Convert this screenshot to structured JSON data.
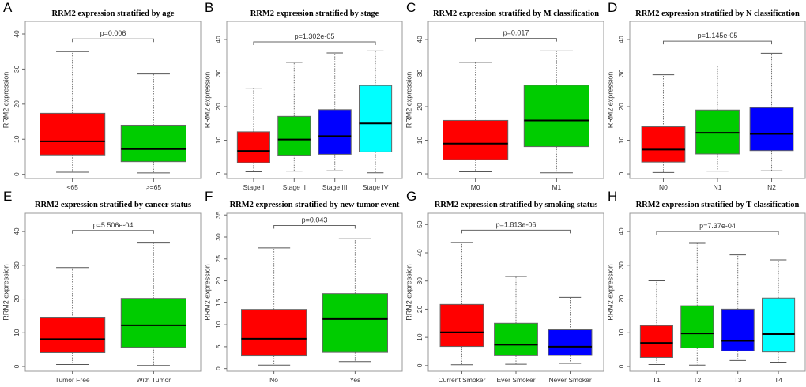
{
  "chart_data": [
    {
      "type": "boxplot",
      "letter": "A",
      "title": "RRM2 expression stratified by age",
      "ylabel": "RRM2 expression",
      "ylim": [
        -1.2,
        43.6
      ],
      "yticks": [
        0,
        10,
        20,
        30,
        40
      ],
      "p": "p=0.006",
      "bracket": 38.6,
      "categories": [
        "<65",
        ">=65"
      ],
      "colors": [
        "#ff0000",
        "#00cc00"
      ],
      "boxes": [
        {
          "min": 0.6,
          "q1": 5.5,
          "median": 9.4,
          "q3": 17.4,
          "max": 35
        },
        {
          "min": 0.4,
          "q1": 3.6,
          "median": 7.2,
          "q3": 14,
          "max": 28.6
        }
      ]
    },
    {
      "type": "boxplot",
      "letter": "B",
      "title": "RRM2 expression stratified by stage",
      "ylabel": "RRM2 expression",
      "ylim": [
        -1.4,
        45.4
      ],
      "yticks": [
        0,
        10,
        20,
        30,
        40
      ],
      "p": "p=1.302e-05",
      "bracket": 39.3,
      "categories": [
        "Stage I",
        "Stage II",
        "Stage III",
        "Stage IV"
      ],
      "colors": [
        "#ff0000",
        "#00cc00",
        "#0000ff",
        "#00ffff"
      ],
      "boxes": [
        {
          "min": 0.6,
          "q1": 3.3,
          "median": 6.8,
          "q3": 12.5,
          "max": 25.5
        },
        {
          "min": 0.8,
          "q1": 5.5,
          "median": 10.2,
          "q3": 17.1,
          "max": 33.2
        },
        {
          "min": 0.9,
          "q1": 5.8,
          "median": 11.2,
          "q3": 19.1,
          "max": 36
        },
        {
          "min": 0.3,
          "q1": 6.5,
          "median": 15,
          "q3": 26.3,
          "max": 36.6
        }
      ]
    },
    {
      "type": "boxplot",
      "letter": "C",
      "title": "RRM2 expression stratified by M classification",
      "ylabel": "RRM2 expression",
      "ylim": [
        -1.4,
        45.4
      ],
      "yticks": [
        0,
        10,
        20,
        30,
        40
      ],
      "p": "p=0.017",
      "bracket": 40.3,
      "categories": [
        "M0",
        "M1"
      ],
      "colors": [
        "#ff0000",
        "#00cc00"
      ],
      "boxes": [
        {
          "min": 0.6,
          "q1": 4.2,
          "median": 9,
          "q3": 15.9,
          "max": 33.2
        },
        {
          "min": 0.3,
          "q1": 8.1,
          "median": 15.9,
          "q3": 26.4,
          "max": 36.6
        }
      ]
    },
    {
      "type": "boxplot",
      "letter": "D",
      "title": "RRM2 expression stratified by N classification",
      "ylabel": "RRM2 expression",
      "ylim": [
        -1.4,
        45.4
      ],
      "yticks": [
        0,
        10,
        20,
        30,
        40
      ],
      "p": "p=1.145e-05",
      "bracket": 39.5,
      "categories": [
        "N0",
        "N1",
        "N2"
      ],
      "colors": [
        "#ff0000",
        "#00cc00",
        "#0000ff"
      ],
      "boxes": [
        {
          "min": 0.4,
          "q1": 3.5,
          "median": 7.2,
          "q3": 14,
          "max": 29.5
        },
        {
          "min": 0.8,
          "q1": 5.9,
          "median": 12.2,
          "q3": 19,
          "max": 32.1
        },
        {
          "min": 0.9,
          "q1": 6.9,
          "median": 11.9,
          "q3": 19.7,
          "max": 35.9
        }
      ]
    },
    {
      "type": "boxplot",
      "letter": "E",
      "title": "RRM2 expression stratified by cancer status",
      "ylabel": "RRM2 expression",
      "ylim": [
        -1.4,
        45.4
      ],
      "yticks": [
        0,
        10,
        20,
        30,
        40
      ],
      "p": "p=5.506e-04",
      "bracket": 40.3,
      "categories": [
        "Tumor Free",
        "With Tumor"
      ],
      "colors": [
        "#ff0000",
        "#00cc00"
      ],
      "boxes": [
        {
          "min": 0.6,
          "q1": 4.1,
          "median": 8.1,
          "q3": 14.4,
          "max": 29.3
        },
        {
          "min": 0.3,
          "q1": 5.7,
          "median": 12.2,
          "q3": 20.2,
          "max": 36.6
        }
      ]
    },
    {
      "type": "boxplot",
      "letter": "F",
      "title": "RRM2 expression stratified by new tumor event",
      "ylabel": "RRM2 expression",
      "ylim": [
        -0.6,
        35.4
      ],
      "yticks": [
        0,
        5,
        10,
        15,
        20,
        25,
        30,
        35
      ],
      "p": "p=0.043",
      "bracket": 32.6,
      "categories": [
        "No",
        "Yes"
      ],
      "colors": [
        "#ff0000",
        "#00cc00"
      ],
      "boxes": [
        {
          "min": 0.8,
          "q1": 2.9,
          "median": 6.8,
          "q3": 13.5,
          "max": 27.5
        },
        {
          "min": 1.6,
          "q1": 3.7,
          "median": 11.3,
          "q3": 17.1,
          "max": 29.6
        }
      ]
    },
    {
      "type": "boxplot",
      "letter": "G",
      "title": "RRM2 expression stratified by smoking status",
      "ylabel": "RRM2 expression",
      "ylim": [
        -2,
        54
      ],
      "yticks": [
        0,
        10,
        20,
        30,
        40,
        50
      ],
      "p": "p=1.813e-06",
      "bracket": 48,
      "categories": [
        "Current Smoker",
        "Ever Smoker",
        "Never Smoker"
      ],
      "colors": [
        "#ff0000",
        "#00cc00",
        "#0000ff"
      ],
      "boxes": [
        {
          "min": 0.3,
          "q1": 6.8,
          "median": 11.8,
          "q3": 21.7,
          "max": 43.6
        },
        {
          "min": 0.5,
          "q1": 3.5,
          "median": 7.4,
          "q3": 15,
          "max": 31.6
        },
        {
          "min": 0.8,
          "q1": 3.6,
          "median": 6.7,
          "q3": 12.7,
          "max": 24.2
        }
      ]
    },
    {
      "type": "boxplot",
      "letter": "H",
      "title": "RRM2 expression stratified by T classification",
      "ylabel": "RRM2 expression",
      "ylim": [
        -1.4,
        45.4
      ],
      "yticks": [
        0,
        10,
        20,
        30,
        40
      ],
      "p": "p=7.37e-04",
      "bracket": 40,
      "categories": [
        "T1",
        "T2",
        "T3",
        "T4"
      ],
      "colors": [
        "#ff0000",
        "#00cc00",
        "#0000ff",
        "#00ffff"
      ],
      "boxes": [
        {
          "min": 0.6,
          "q1": 2.7,
          "median": 7,
          "q3": 12.1,
          "max": 25.4
        },
        {
          "min": 0.4,
          "q1": 5.5,
          "median": 9.8,
          "q3": 18,
          "max": 36.5
        },
        {
          "min": 1.8,
          "q1": 4.6,
          "median": 7.6,
          "q3": 17,
          "max": 33.1
        },
        {
          "min": 1.3,
          "q1": 4.3,
          "median": 9.6,
          "q3": 20.3,
          "max": 31.6
        }
      ]
    }
  ]
}
